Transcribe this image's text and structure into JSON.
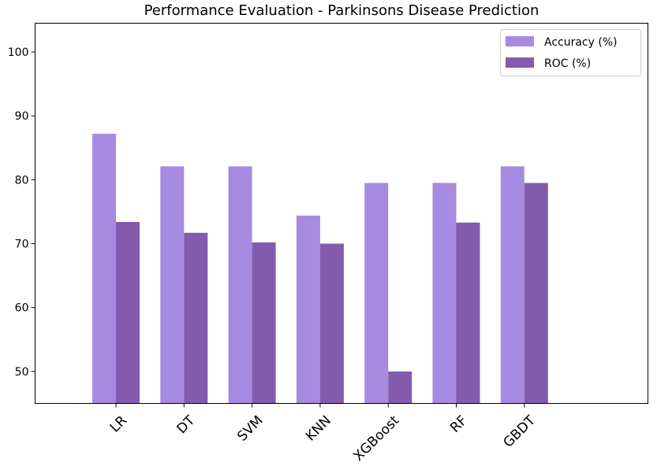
{
  "chart_data": {
    "type": "bar",
    "title": "Performance Evaluation - Parkinsons Disease Prediction",
    "xlabel": "",
    "ylabel": "",
    "categories": [
      "LR",
      "DT",
      "SVM",
      "KNN",
      "XGBoost",
      "RF",
      "GBDT"
    ],
    "series": [
      {
        "name": "Accuracy (%)",
        "color": "#a68be0",
        "values": [
          87.2,
          82.1,
          82.1,
          74.4,
          79.5,
          79.5,
          82.1
        ]
      },
      {
        "name": "ROC (%)",
        "color": "#825bad",
        "values": [
          73.4,
          71.7,
          70.2,
          70.0,
          50.0,
          73.3,
          79.5
        ]
      }
    ],
    "ylim": [
      45,
      104.5
    ],
    "yticks": [
      50,
      60,
      70,
      80,
      90,
      100
    ],
    "grid": false,
    "legend_position": "upper right"
  }
}
